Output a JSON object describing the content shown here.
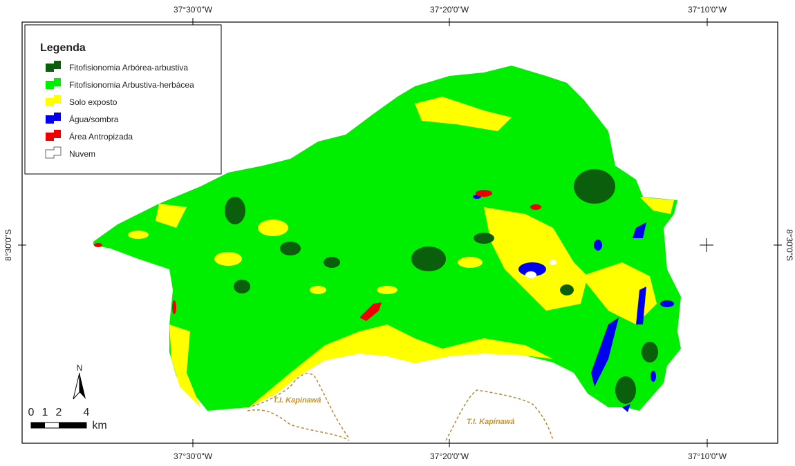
{
  "map": {
    "top_labels": [
      "37°30'0\"W",
      "37°20'0\"W",
      "37°10'0\"W"
    ],
    "bottom_labels": [
      "37°30'0\"W",
      "37°20'0\"W",
      "37°10'0\"W"
    ],
    "left_label": "8°30'0\"S",
    "right_label": "8°30'0\"S"
  },
  "legend": {
    "title": "Legenda",
    "items": [
      "Fitofisionomia Arbórea-arbustiva",
      "Fitofisionomia Arbustiva-herbácea",
      "Solo exposto",
      "Água/sombra",
      "Área Antropizada",
      "Nuvem"
    ]
  },
  "north": "N",
  "scale": {
    "labels": [
      "0",
      "1",
      "2",
      "4"
    ],
    "unit": "km"
  },
  "annotations": [
    "T.I. Kapinawá",
    "T.I. Kapinawá"
  ]
}
